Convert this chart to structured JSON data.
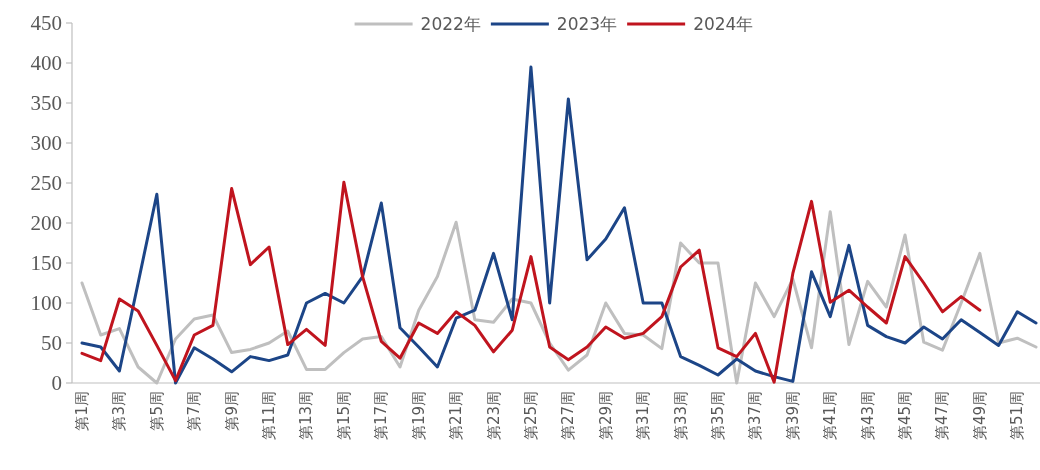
{
  "chart_data": {
    "type": "line",
    "categories": [
      "第1周",
      null,
      "第3周",
      null,
      "第5周",
      null,
      "第7周",
      null,
      "第9周",
      null,
      "第11周",
      null,
      "第13周",
      null,
      "第15周",
      null,
      "第17周",
      null,
      "第19周",
      null,
      "第21周",
      null,
      "第23周",
      null,
      "第25周",
      null,
      "第27周",
      null,
      "第29周",
      null,
      "第31周",
      null,
      "第33周",
      null,
      "第35周",
      null,
      "第37周",
      null,
      "第39周",
      null,
      "第41周",
      null,
      "第43周",
      null,
      "第45周",
      null,
      "第47周",
      null,
      "第49周",
      null,
      "第51周",
      null
    ],
    "series": [
      {
        "name": "2022年",
        "color": "#bfbfbf",
        "values": [
          125,
          60,
          68,
          20,
          0,
          55,
          80,
          85,
          38,
          42,
          50,
          65,
          17,
          17,
          38,
          55,
          58,
          20,
          91,
          133,
          201,
          79,
          76,
          105,
          100,
          50,
          16,
          35,
          100,
          62,
          60,
          43,
          175,
          150,
          150,
          0,
          125,
          83,
          130,
          44,
          214,
          48,
          127,
          95,
          185,
          51,
          41,
          100,
          162,
          50,
          56,
          45
        ]
      },
      {
        "name": "2023年",
        "color": "#1c4587",
        "values": [
          50,
          45,
          15,
          125,
          236,
          0,
          44,
          30,
          14,
          33,
          28,
          35,
          100,
          112,
          100,
          133,
          225,
          69,
          45,
          20,
          81,
          91,
          162,
          79,
          395,
          100,
          355,
          154,
          180,
          219,
          100,
          100,
          33,
          22,
          10,
          30,
          15,
          8,
          2,
          139,
          83,
          172,
          72,
          58,
          50,
          70,
          55,
          79,
          63,
          47,
          89,
          75
        ]
      },
      {
        "name": "2024年",
        "color": "#c0141e",
        "values": [
          37,
          28,
          105,
          90,
          47,
          3,
          60,
          72,
          243,
          148,
          170,
          48,
          67,
          47,
          251,
          133,
          52,
          31,
          75,
          62,
          89,
          72,
          39,
          66,
          158,
          45,
          29,
          45,
          70,
          56,
          62,
          83,
          145,
          166,
          44,
          33,
          62,
          1,
          137,
          227,
          101,
          116,
          95,
          75,
          158,
          125,
          89,
          108,
          91,
          null,
          null,
          null
        ]
      }
    ],
    "ylim": [
      0,
      450
    ],
    "yticks": [
      0,
      50,
      100,
      150,
      200,
      250,
      300,
      350,
      400,
      450
    ],
    "legend": "top"
  }
}
